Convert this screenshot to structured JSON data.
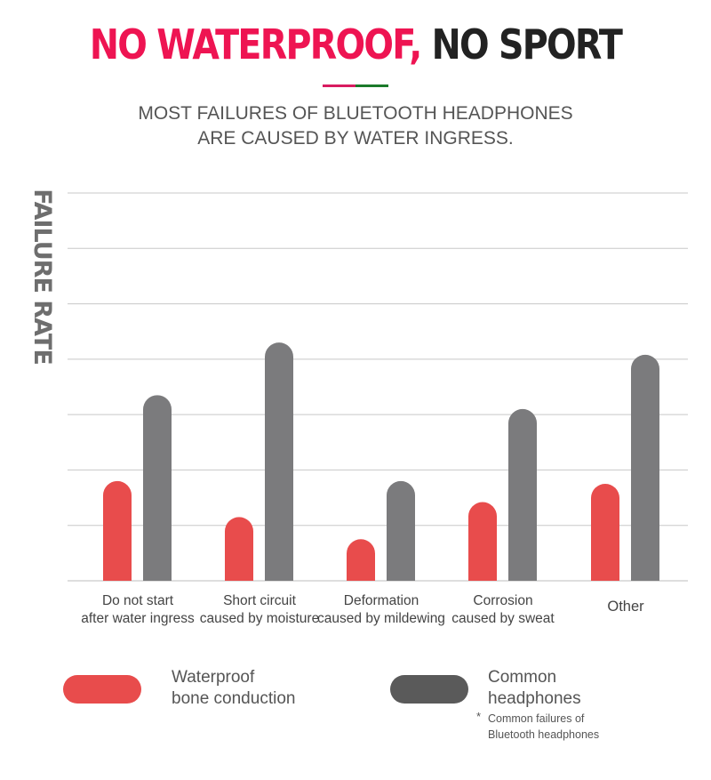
{
  "header": {
    "title_part1": "NO WATERPROOF,",
    "title_part2": " NO SPORT",
    "subtitle_line1": "MOST FAILURES OF BLUETOOTH HEADPHONES",
    "subtitle_line2": "ARE CAUSED BY WATER INGRESS.",
    "accent_color": "#ee1452",
    "rule_colors": [
      "#d81b60",
      "#1b7a2a"
    ]
  },
  "chart_data": {
    "type": "bar",
    "ylabel": "FAILURE RATE",
    "ylim": [
      0,
      7
    ],
    "grid": true,
    "categories": [
      [
        "Do not start",
        "after water ingress"
      ],
      [
        "Short circuit",
        "caused by moisture"
      ],
      [
        "Deformation",
        "caused by mildewing"
      ],
      [
        "Corrosion",
        "caused by sweat"
      ],
      [
        "Other"
      ]
    ],
    "series": [
      {
        "name": "Waterproof bone conduction",
        "color": "#e84c4c",
        "values": [
          1.8,
          1.15,
          0.75,
          1.42,
          1.75
        ]
      },
      {
        "name": "Common headphones",
        "color": "#7b7b7d",
        "values": [
          3.35,
          4.3,
          1.8,
          3.1,
          4.08
        ]
      }
    ]
  },
  "legend": {
    "waterproof_line1": "Waterproof",
    "waterproof_line2": "bone conduction",
    "common_line1": "Common",
    "common_line2": "headphones",
    "waterproof_color": "#e84c4c",
    "common_color": "#5a5a5a"
  },
  "footnote": {
    "star": "*",
    "line1": "Common failures of",
    "line2": "Bluetooth headphones"
  }
}
